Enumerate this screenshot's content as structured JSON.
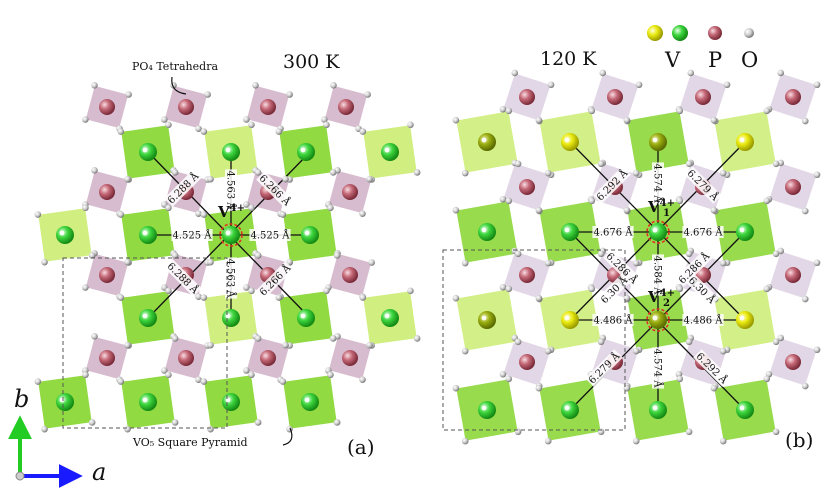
{
  "panel_a": {
    "temperature": "300 K",
    "label": "(a)",
    "annotation_top": "PO₄ Tetrahedra",
    "annotation_bottom": "VO₅ Square Pyramid",
    "ion": "V",
    "ion_charge": "4+",
    "distances": {
      "horizontal_left": "4.525 Å",
      "horizontal_right": "4.525 Å",
      "vertical_up": "4.563 Å",
      "vertical_down": "4.563 Å",
      "diag_up_left": "6.288 Å",
      "diag_down_left": "6.288 Å",
      "diag_up_right": "6.266 Å",
      "diag_down_right": "6.266 Å"
    }
  },
  "panel_b": {
    "temperature": "120 K",
    "label": "(b)",
    "ion1": "V",
    "ion1_charge": "4+",
    "ion1_index": "1",
    "ion2": "V",
    "ion2_charge": "4+",
    "ion2_index": "2",
    "distances": {
      "v1_left": "4.676 Å",
      "v1_right": "4.676 Å",
      "v1_up": "4.574 Å",
      "v1_diag_up_left": "6.292 Å",
      "v1_diag_up_right": "6.279 Å",
      "v1_diag_down_left": "6.286 Å",
      "v1_diag_down_right": "6.286 Å",
      "v1_v2": "4.584 Å",
      "v2_left": "4.486 Å",
      "v2_right": "4.486 Å",
      "v2_diag_up_left": "6.30 Å",
      "v2_diag_up_right": "6.30 Å",
      "v2_down": "4.574 Å",
      "v2_diag_down_left": "6.279 Å",
      "v2_diag_down_right": "6.292 Å"
    }
  },
  "legend": {
    "v_label": "V",
    "p_label": "P",
    "o_label": "O",
    "colors": {
      "v_yellow": "#e6e600",
      "v_green": "#33cc33",
      "p": "#c06070",
      "o": "#c8c8c8"
    }
  },
  "axes": {
    "b": "b",
    "a": "a",
    "b_color": "#22cc22",
    "a_color": "#1a1aff"
  },
  "colors": {
    "vo5_green": "#7ed321",
    "vo5_light": "#c8ec6a",
    "po4_purple": "#c9a6c0",
    "po4_light": "#ddd0e2",
    "bond": "#111111",
    "highlight": "#e03020"
  }
}
